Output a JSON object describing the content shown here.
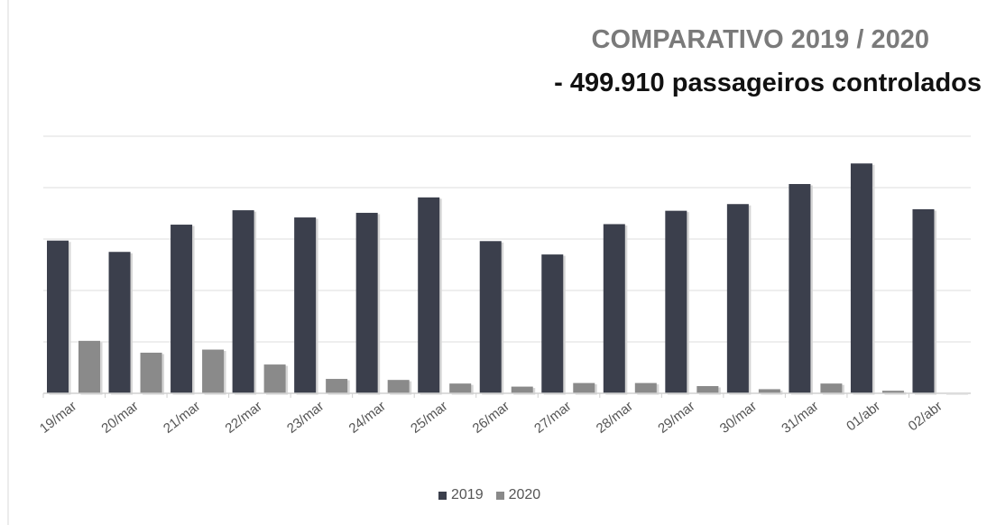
{
  "chart_data": {
    "type": "bar",
    "title": "COMPARATIVO 2019 / 2020",
    "subtitle": "- 499.910 passageiros controlados",
    "categories": [
      "19/mar",
      "20/mar",
      "21/mar",
      "22/mar",
      "23/mar",
      "24/mar",
      "25/mar",
      "26/mar",
      "27/mar",
      "28/mar",
      "29/mar",
      "30/mar",
      "31/mar",
      "01/abr",
      "02/abr"
    ],
    "series": [
      {
        "name": "2019",
        "color": "#3b3f4c",
        "values": [
          29.7,
          27.5,
          32.8,
          35.6,
          34.2,
          35.1,
          38.1,
          29.6,
          27.0,
          32.9,
          35.5,
          36.8,
          40.7,
          44.7,
          35.8
        ]
      },
      {
        "name": "2020",
        "color": "#8a8a8a",
        "values": [
          10.2,
          7.9,
          8.5,
          5.6,
          2.8,
          2.6,
          1.9,
          1.3,
          2.0,
          2.0,
          1.4,
          0.8,
          1.9,
          0.5,
          0.0
        ]
      }
    ],
    "ylim": [
      0,
      50
    ],
    "grid": true,
    "legend_position": "bottom"
  }
}
